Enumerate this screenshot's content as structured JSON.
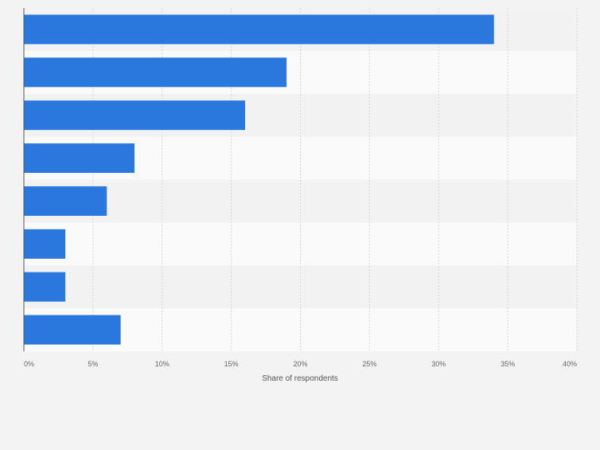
{
  "chart_data": {
    "type": "bar",
    "orientation": "horizontal",
    "categories": [
      "",
      "",
      "",
      "",
      "",
      "",
      "",
      ""
    ],
    "values": [
      34,
      19,
      16,
      8,
      6,
      3,
      3,
      7
    ],
    "xlabel": "Share of respondents",
    "ylabel": "",
    "xlim": [
      0,
      40
    ],
    "x_ticks": [
      "0%",
      "5%",
      "10%",
      "15%",
      "20%",
      "25%",
      "30%",
      "35%",
      "40%"
    ],
    "grid": true,
    "bar_color": "#2a77de",
    "plot_background": "#fafafa",
    "band_color": "#f2f2f2"
  }
}
